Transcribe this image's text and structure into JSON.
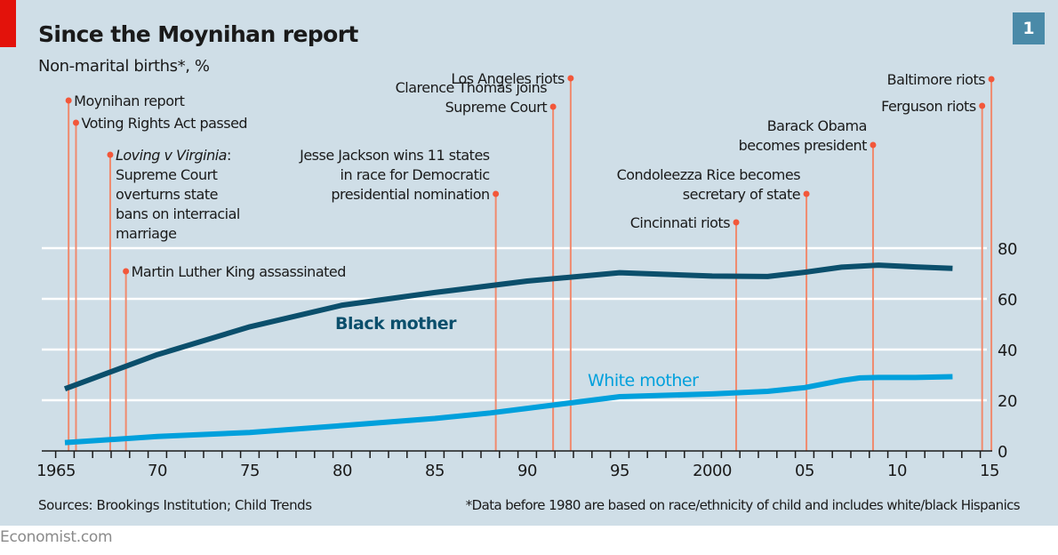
{
  "header": {
    "title": "Since the Moynihan report",
    "subtitle": "Non-marital births*, %",
    "badge": "1"
  },
  "footer": {
    "source": "Sources: Brookings Institution; Child Trends",
    "footnote": "*Data before 1980 are based on race/ethnicity of child and includes white/black Hispanics",
    "brand": "Economist.com"
  },
  "colors": {
    "background": "#cfdee7",
    "black_mother": "#0b4f6c",
    "white_mother": "#00a0dc",
    "event_line": "#f08a6e",
    "event_dot": "#f2573a",
    "gridline": "#ffffff",
    "accent_red": "#e3120b",
    "badge": "#4a8aa8"
  },
  "chart_data": {
    "type": "line",
    "title": "Since the Moynihan report",
    "subtitle": "Non-marital births*, %",
    "xlabel": "",
    "ylabel": "Non-marital births*, %",
    "xlim": [
      1964,
      2016
    ],
    "ylim": [
      0,
      80
    ],
    "grid": true,
    "y_axis_side": "right",
    "y_ticks": [
      0,
      20,
      40,
      60,
      80
    ],
    "x_tick_labels": [
      {
        "year": 1965,
        "label": "1965"
      },
      {
        "year": 1970,
        "label": "70"
      },
      {
        "year": 1975,
        "label": "75"
      },
      {
        "year": 1980,
        "label": "80"
      },
      {
        "year": 1985,
        "label": "85"
      },
      {
        "year": 1990,
        "label": "90"
      },
      {
        "year": 1995,
        "label": "95"
      },
      {
        "year": 2000,
        "label": "2000"
      },
      {
        "year": 2005,
        "label": "05"
      },
      {
        "year": 2010,
        "label": "10"
      },
      {
        "year": 2015,
        "label": "15"
      }
    ],
    "series": [
      {
        "name": "Black mother",
        "x": [
          1965,
          1970,
          1975,
          1980,
          1985,
          1990,
          1995,
          2000,
          2003,
          2005,
          2007,
          2009,
          2011,
          2013
        ],
        "values": [
          24.5,
          38,
          49,
          57.5,
          62.5,
          67,
          70.3,
          69,
          68.8,
          70.5,
          72.5,
          73.3,
          72.6,
          72
        ]
      },
      {
        "name": "White mother",
        "x": [
          1965,
          1970,
          1975,
          1980,
          1985,
          1988,
          1990,
          1995,
          2000,
          2003,
          2005,
          2007,
          2008,
          2009,
          2011,
          2013
        ],
        "values": [
          3.3,
          5.7,
          7.3,
          10,
          12.8,
          15,
          16.8,
          21.4,
          22.5,
          23.5,
          25,
          27.8,
          28.8,
          29,
          29,
          29.3
        ]
      }
    ],
    "series_labels": [
      {
        "series": "Black mother",
        "text": "Black mother"
      },
      {
        "series": "White mother",
        "text": "White mother"
      }
    ],
    "events": [
      {
        "year": 1965.2,
        "lines": [
          "Moynihan report"
        ],
        "align": "left",
        "tier": 1
      },
      {
        "year": 1965.6,
        "lines": [
          "Voting Rights Act passed"
        ],
        "align": "left",
        "tier": 2
      },
      {
        "year": 1967.45,
        "lines": [
          "Loving v Virginia:",
          "Supreme Court",
          "overturns state",
          "bans on interracial",
          "marriage"
        ],
        "italic_prefix": "Loving v Virginia",
        "align": "left",
        "tier": 3
      },
      {
        "year": 1968.3,
        "lines": [
          "Martin Luther King assassinated"
        ],
        "align": "left",
        "tier": 4
      },
      {
        "year": 1988.3,
        "lines": [
          "Jesse Jackson wins 11 states",
          "in race for Democratic",
          "presidential nomination"
        ],
        "align": "right",
        "tier": 5
      },
      {
        "year": 1991.4,
        "lines": [
          "Clarence Thomas joins",
          "Supreme Court"
        ],
        "align": "right",
        "tier": 6
      },
      {
        "year": 1992.35,
        "lines": [
          "Los Angeles riots"
        ],
        "align": "right",
        "tier": 7
      },
      {
        "year": 2001.3,
        "lines": [
          "Cincinnati riots"
        ],
        "align": "right",
        "tier": 8
      },
      {
        "year": 2005.1,
        "lines": [
          "Condoleezza Rice becomes",
          "secretary of state"
        ],
        "align": "right",
        "tier": 9
      },
      {
        "year": 2008.7,
        "lines": [
          "Barack Obama",
          "becomes president"
        ],
        "align": "right",
        "tier": 10
      },
      {
        "year": 2014.6,
        "lines": [
          "Ferguson riots"
        ],
        "align": "right",
        "tier": 11
      },
      {
        "year": 2015.1,
        "lines": [
          "Baltimore riots"
        ],
        "align": "right",
        "tier": 12
      }
    ]
  }
}
